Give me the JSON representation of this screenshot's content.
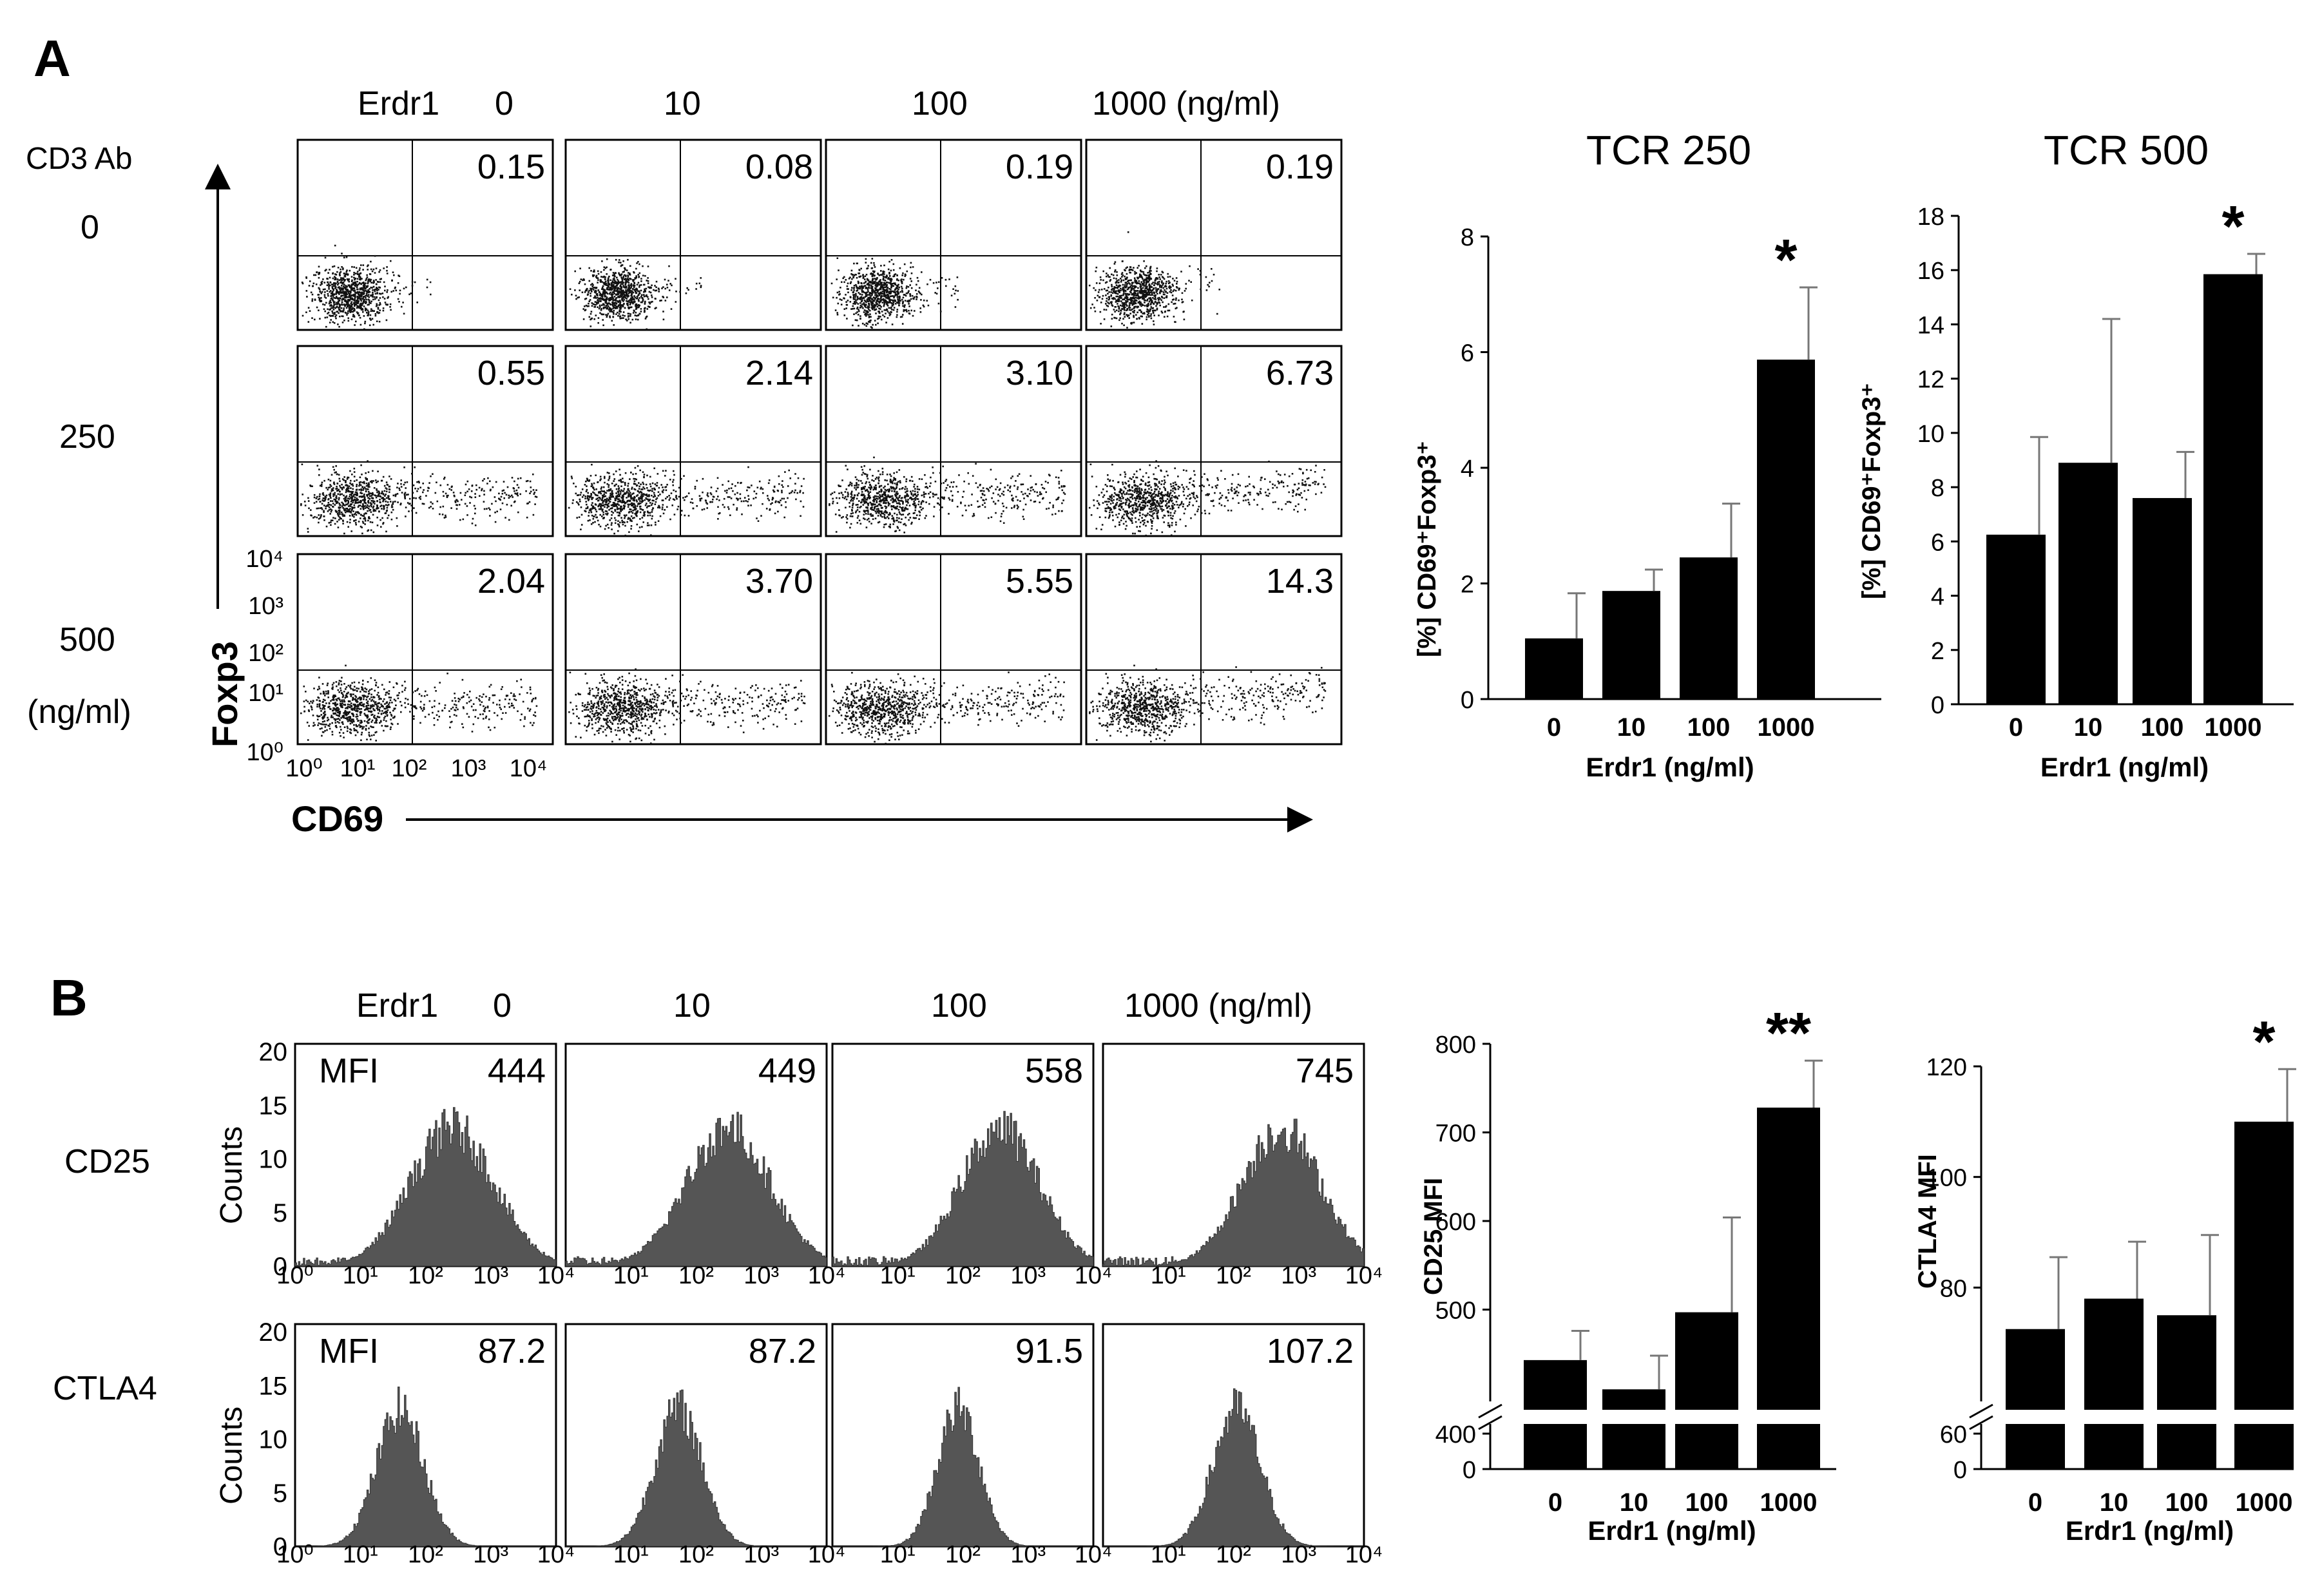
{
  "panel_a": {
    "letter": "A",
    "erdr1_label": "Erdr1",
    "conc_headers": [
      "0",
      "10",
      "100",
      "1000 (ng/ml)"
    ],
    "cd3_label": "CD3 Ab",
    "row_labels": [
      "0",
      "250",
      "500"
    ],
    "row_unit": "(ng/ml)",
    "y_axis": "Foxp3",
    "x_axis": "CD69",
    "y_ticks": [
      "10⁰",
      "10¹",
      "10²",
      "10³",
      "10⁴"
    ],
    "x_ticks": [
      "10⁰",
      "10¹",
      "10²",
      "10³",
      "10⁴"
    ],
    "percentages": [
      [
        "0.15",
        "0.08",
        "0.19",
        "0.19"
      ],
      [
        "0.55",
        "2.14",
        "3.10",
        "6.73"
      ],
      [
        "2.04",
        "3.70",
        "5.55",
        "14.3"
      ]
    ]
  },
  "panel_b": {
    "letter": "B",
    "erdr1_label": "Erdr1",
    "conc_headers": [
      "0",
      "10",
      "100",
      "1000 (ng/ml)"
    ],
    "row_labels": [
      "CD25",
      "CTLA4"
    ],
    "y_axis": "Counts",
    "y_ticks": [
      "0",
      "5",
      "10",
      "15",
      "20"
    ],
    "x_ticks": [
      "10⁰",
      "10¹",
      "10²",
      "10³",
      "10⁴"
    ],
    "mfi_label": "MFI",
    "mfi": [
      [
        "444",
        "449",
        "558",
        "745"
      ],
      [
        "87.2",
        "87.2",
        "91.5",
        "107.2"
      ]
    ]
  },
  "chart_data": [
    {
      "type": "bar",
      "title": "TCR 250",
      "categories": [
        "0",
        "10",
        "100",
        "1000"
      ],
      "values": [
        1.05,
        1.87,
        2.45,
        5.87
      ],
      "errors": [
        0.78,
        0.37,
        0.93,
        1.25
      ],
      "significance": [
        "",
        "",
        "",
        "*"
      ],
      "xlabel": "Erdr1 (ng/ml)",
      "ylabel": "[%] CD69⁺Foxp3⁺",
      "ylim": [
        0,
        8
      ],
      "yticks": [
        0,
        2,
        4,
        6,
        8
      ]
    },
    {
      "type": "bar",
      "title": "TCR 500",
      "categories": [
        "0",
        "10",
        "100",
        "1000"
      ],
      "values": [
        6.25,
        8.9,
        7.6,
        15.85
      ],
      "errors": [
        3.6,
        5.3,
        1.7,
        0.75
      ],
      "significance": [
        "",
        "",
        "",
        "*"
      ],
      "xlabel": "Erdr1 (ng/ml)",
      "ylabel": "[%] CD69⁺Foxp3⁺",
      "ylim": [
        0,
        18
      ],
      "yticks": [
        0,
        2,
        4,
        6,
        8,
        10,
        12,
        14,
        16,
        18
      ]
    },
    {
      "type": "bar",
      "title": "",
      "categories": [
        "0",
        "10",
        "100",
        "1000"
      ],
      "values": [
        443,
        410,
        497,
        728
      ],
      "errors": [
        33,
        38,
        107,
        53
      ],
      "significance": [
        "",
        "",
        "",
        "**"
      ],
      "xlabel": "Erdr1 (ng/ml)",
      "ylabel": "CD25 MFI",
      "ylim": [
        0,
        800
      ],
      "broken_axis": [
        0,
        400
      ],
      "yticks": [
        0,
        400,
        500,
        600,
        700,
        800
      ]
    },
    {
      "type": "bar",
      "title": "",
      "categories": [
        "0",
        "10",
        "100",
        "1000"
      ],
      "values": [
        72.5,
        78,
        75,
        110
      ],
      "errors": [
        13,
        10.3,
        14.5,
        9.5
      ],
      "significance": [
        "",
        "",
        "",
        "*"
      ],
      "xlabel": "Erdr1 (ng/ml)",
      "ylabel": "CTLA4 MFI",
      "ylim": [
        0,
        120
      ],
      "broken_axis": [
        0,
        60
      ],
      "yticks": [
        0,
        60,
        80,
        100,
        120
      ]
    }
  ]
}
